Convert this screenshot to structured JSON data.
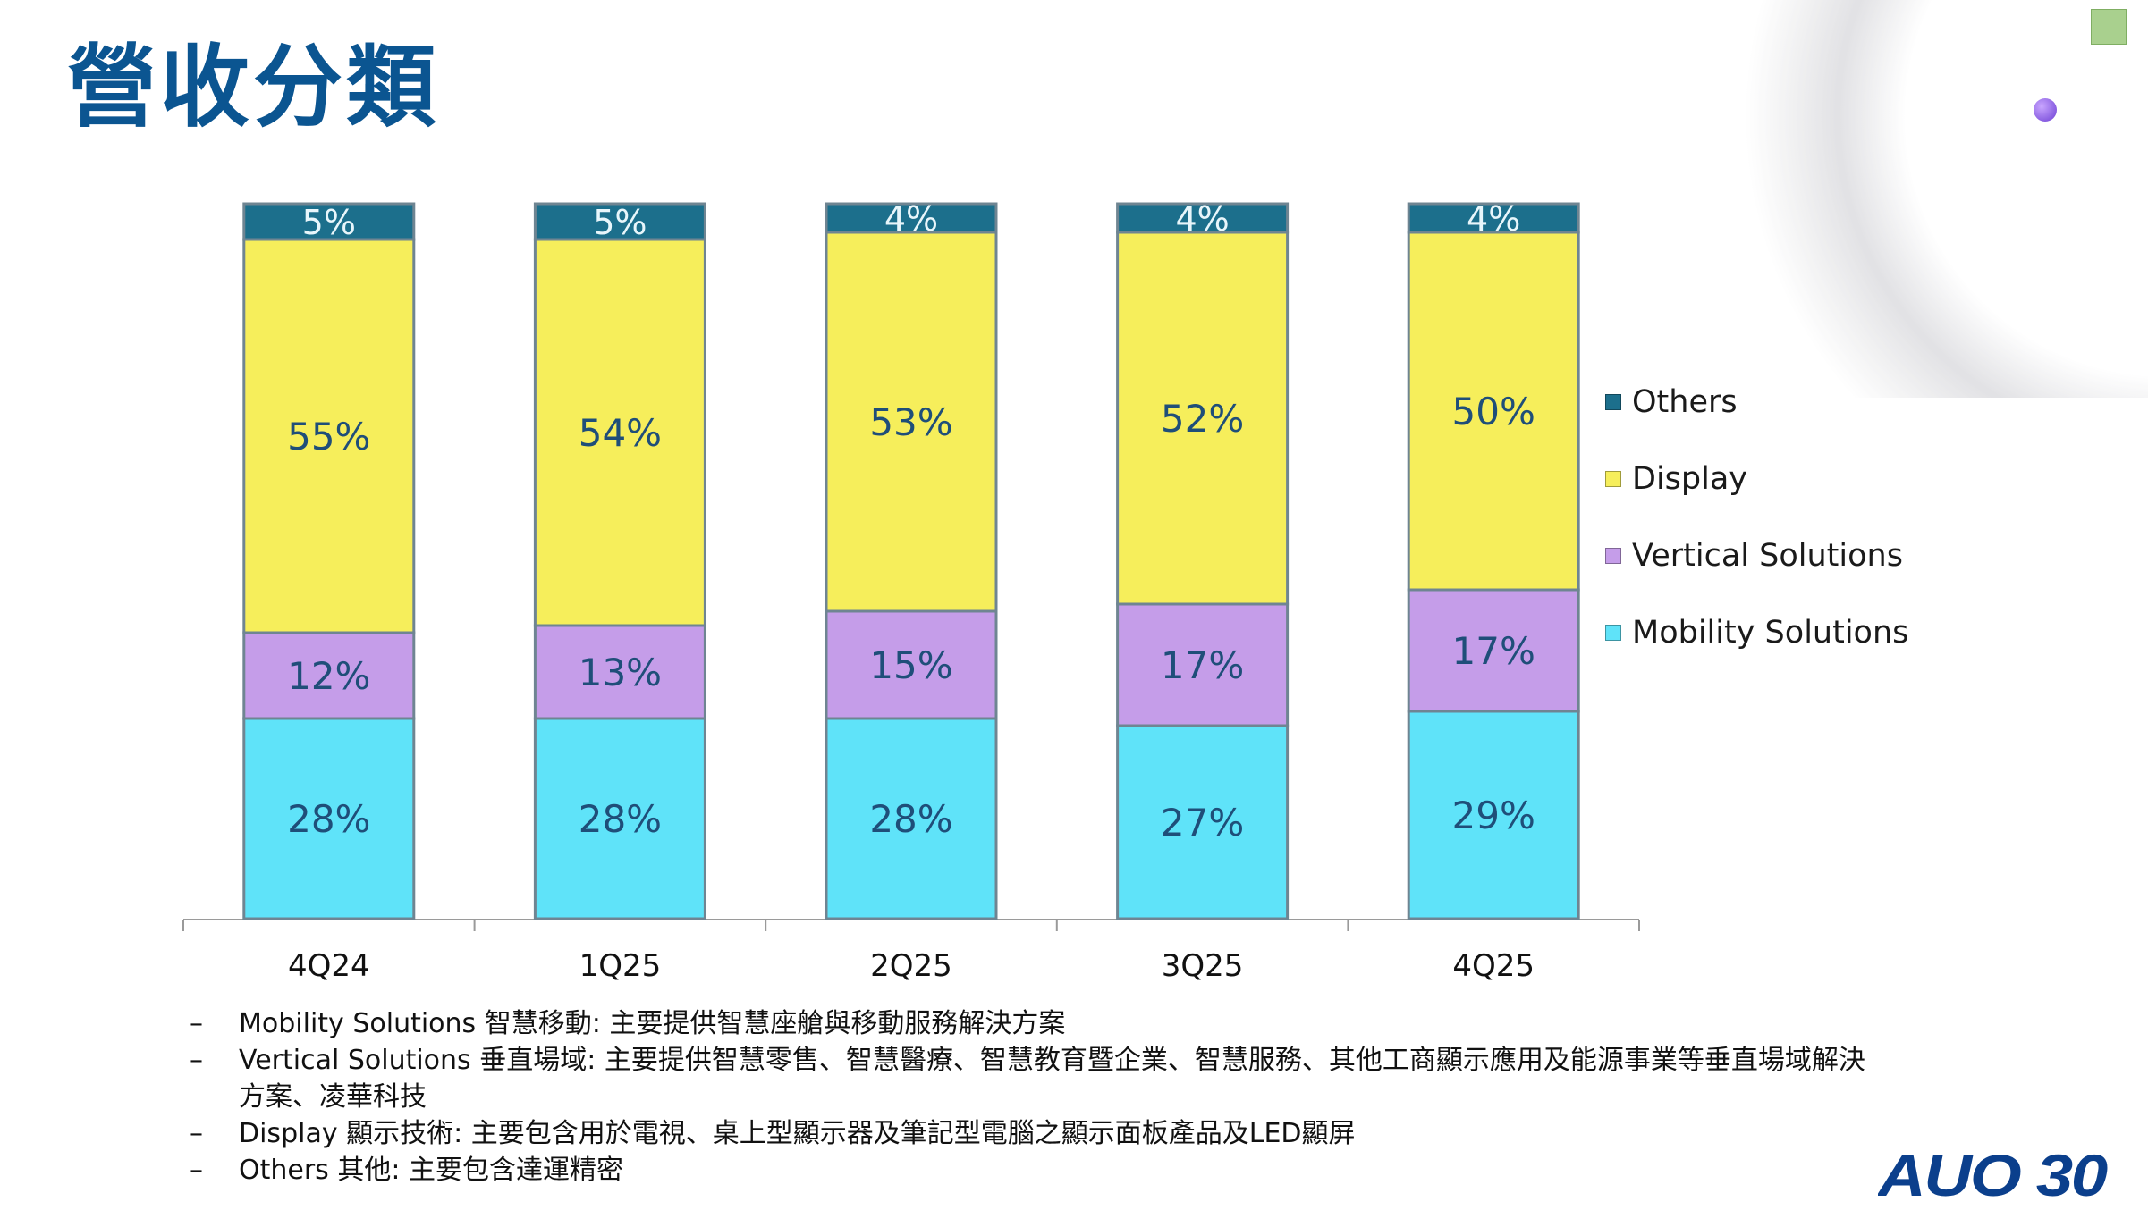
{
  "slide": {
    "title": "營收分類",
    "logo_text": "AUO 30"
  },
  "colors": {
    "title": "#0b5591",
    "Others": "#1c6f8c",
    "Display": "#f6ee5b",
    "Vertical Solutions": "#c59de9",
    "Mobility Solutions": "#5fe3f9",
    "data_label": "#1f4e79"
  },
  "chart_data": {
    "type": "bar",
    "stacked": true,
    "normalized_to": 100,
    "categories": [
      "4Q24",
      "1Q25",
      "2Q25",
      "3Q25",
      "4Q25"
    ],
    "series": [
      {
        "name": "Mobility Solutions",
        "values": [
          28,
          28,
          28,
          27,
          29
        ],
        "labels": [
          "28%",
          "28%",
          "28%",
          "27%",
          "29%"
        ]
      },
      {
        "name": "Vertical Solutions",
        "values": [
          12,
          13,
          15,
          17,
          17
        ],
        "labels": [
          "12%",
          "13%",
          "15%",
          "17%",
          "17%"
        ]
      },
      {
        "name": "Display",
        "values": [
          55,
          54,
          53,
          52,
          50
        ],
        "labels": [
          "55%",
          "54%",
          "53%",
          "52%",
          "50%"
        ]
      },
      {
        "name": "Others",
        "values": [
          5,
          5,
          4,
          4,
          4
        ],
        "labels": [
          "5%",
          "5%",
          "4%",
          "4%",
          "4%"
        ]
      }
    ],
    "legend": [
      "Others",
      "Display",
      "Vertical Solutions",
      "Mobility Solutions"
    ],
    "legend_position": "right",
    "grid": false,
    "title": "",
    "xlabel": "",
    "ylabel": ""
  },
  "notes": [
    {
      "dash": "–",
      "text": "Mobility Solutions 智慧移動: 主要提供智慧座艙與移動服務解決方案"
    },
    {
      "dash": "–",
      "text": "Vertical Solutions 垂直場域: 主要提供智慧零售、智慧醫療、智慧教育暨企業、智慧服務、其他工商顯示應用及能源事業等垂直場域解決方案、凌華科技"
    },
    {
      "dash": "–",
      "text": "Display 顯示技術: 主要包含用於電視、桌上型顯示器及筆記型電腦之顯示面板產品及LED顯屏"
    },
    {
      "dash": "–",
      "text": "Others 其他: 主要包含達運精密"
    }
  ]
}
